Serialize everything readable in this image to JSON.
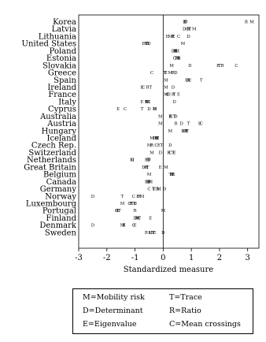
{
  "chart_data": {
    "type": "scatter",
    "xlabel": "Standardized measure",
    "xlim": [
      -3,
      3.4
    ],
    "xticks": [
      -3,
      -2,
      -1,
      0,
      1,
      2,
      3
    ],
    "reference_line": 0,
    "countries": [
      "Korea",
      "Latvia",
      "Lithuania",
      "United States",
      "Poland",
      "Estonia",
      "Slovakia",
      "Greece",
      "Spain",
      "Ireland",
      "France",
      "Italy",
      "Cyprus",
      "Australia",
      "Austria",
      "Hungary",
      "Iceland",
      "Czech Rep.",
      "Switzerland",
      "Netherlands",
      "Great Britain",
      "Belgium",
      "Canada",
      "Germany",
      "Norway",
      "Luxembourg",
      "Portugal",
      "Finland",
      "Denmark",
      "Sweden"
    ],
    "series": [
      {
        "marker": "M",
        "values": [
          3.15,
          1.1,
          0.25,
          0.7,
          0.5,
          0.5,
          0.3,
          0.25,
          0.1,
          0.1,
          0.1,
          -0.55,
          -0.3,
          -0.1,
          -0.1,
          0.25,
          -0.4,
          -0.5,
          -0.4,
          -1.1,
          0.1,
          -0.5,
          -0.45,
          -0.15,
          -0.75,
          -1.45,
          0.0,
          -0.9,
          -1.45,
          -0.45
        ]
      },
      {
        "marker": "D",
        "values": [
          0.8,
          0.75,
          0.9,
          -0.5,
          0.35,
          0.55,
          0.95,
          0.45,
          0.85,
          0.35,
          0.2,
          0.4,
          -0.5,
          0.45,
          0.65,
          0.7,
          -0.25,
          0.25,
          -0.1,
          -0.5,
          -0.7,
          0.3,
          -0.5,
          0.05,
          -2.5,
          -1.0,
          -1.65,
          -1.0,
          -2.5,
          0.0
        ]
      },
      {
        "marker": "E",
        "values": [
          0.75,
          0.9,
          0.15,
          -0.7,
          0.4,
          0.55,
          1.95,
          0.1,
          0.95,
          -0.75,
          0.55,
          -0.75,
          -1.6,
          0.25,
          1.3,
          0.85,
          -0.2,
          -0.15,
          0.4,
          -0.55,
          -0.1,
          0.35,
          -0.55,
          -0.3,
          -0.9,
          -1.0,
          -1.6,
          -0.45,
          -1.0,
          -0.3
        ]
      },
      {
        "marker": "T",
        "values": [
          0.8,
          0.95,
          0.35,
          -0.6,
          0.45,
          0.45,
          2.0,
          0.05,
          1.35,
          -0.45,
          0.4,
          -0.6,
          -0.75,
          0.4,
          0.9,
          0.85,
          -0.2,
          -0.05,
          0.35,
          -0.5,
          -0.55,
          0.25,
          -0.5,
          -0.35,
          -1.45,
          -1.1,
          -1.55,
          -0.85,
          -1.4,
          -0.35
        ]
      },
      {
        "marker": "R",
        "values": [
          2.95,
          0.9,
          0.35,
          -0.55,
          0.45,
          0.55,
          2.1,
          0.35,
          0.9,
          -0.55,
          0.35,
          -0.6,
          -0.3,
          0.25,
          0.45,
          0.8,
          -0.3,
          -0.4,
          0.2,
          -0.6,
          -0.6,
          0.35,
          -0.6,
          -0.2,
          -0.85,
          -1.15,
          -1.0,
          -0.95,
          -1.4,
          -0.6
        ]
      },
      {
        "marker": "C",
        "values": [
          0.8,
          0.85,
          0.55,
          -0.6,
          0.45,
          0.4,
          2.6,
          -0.4,
          0.85,
          -0.7,
          0.15,
          -0.5,
          -1.35,
          0.3,
          1.35,
          0.75,
          -0.2,
          -0.25,
          0.25,
          -1.1,
          -0.6,
          0.35,
          -0.5,
          -0.5,
          -1.05,
          -1.2,
          -1.65,
          -0.85,
          -1.05,
          -0.45
        ]
      }
    ]
  },
  "legend": {
    "m": "M=Mobility risk",
    "t": "T=Trace",
    "d": "D=Determinant",
    "r": "R=Ratio",
    "e": "E=Eigenvalue",
    "c": "C=Mean crossings"
  }
}
